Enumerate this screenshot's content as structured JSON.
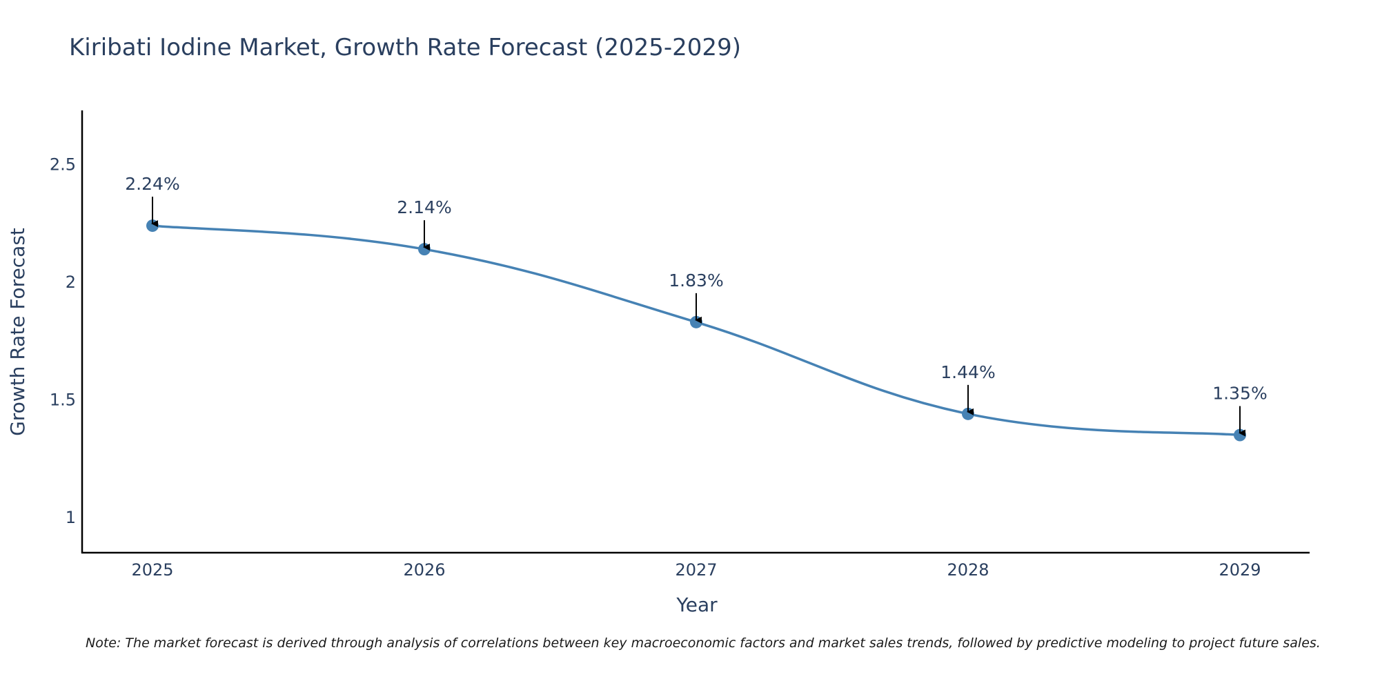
{
  "chart_data": {
    "type": "line",
    "title": "Kiribati Iodine Market, Growth Rate Forecast (2025-2029)",
    "xlabel": "Year",
    "ylabel": "Growth Rate Forecast",
    "categories": [
      "2025",
      "2026",
      "2027",
      "2028",
      "2029"
    ],
    "series": [
      {
        "name": "Growth Rate Forecast",
        "values": [
          2.24,
          2.14,
          1.83,
          1.44,
          1.35
        ]
      }
    ],
    "data_labels": [
      "2.24%",
      "2.14%",
      "1.83%",
      "1.44%",
      "1.35%"
    ],
    "yticks": [
      1,
      1.5,
      2,
      2.5
    ],
    "ytick_labels": [
      "1",
      "1.5",
      "2",
      "2.5"
    ],
    "ylim": [
      0.85,
      2.73
    ],
    "grid": false,
    "line_color": "#4682b4",
    "marker_color": "#4682b4",
    "arrow_color": "#000000"
  },
  "note": "Note: The market forecast is derived through analysis of correlations between key macroeconomic factors and market sales trends, followed by predictive modeling to project future sales."
}
